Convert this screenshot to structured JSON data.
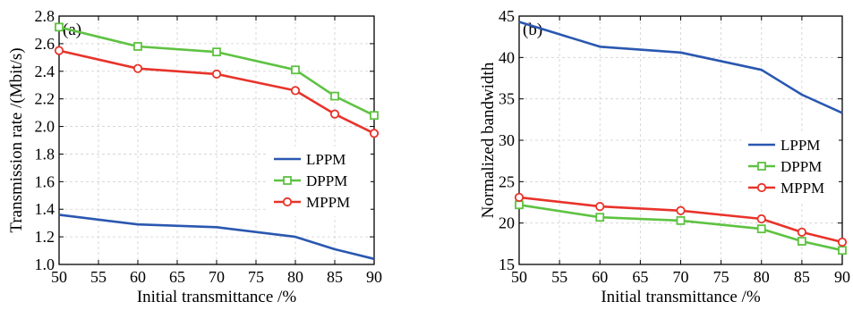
{
  "chart_data": [
    {
      "type": "line",
      "panel_label": "(a)",
      "xlabel": "Initial transmittance /%",
      "ylabel": "Transmission rate /(Mbit/s)",
      "xlim": [
        50,
        90
      ],
      "ylim": [
        1.0,
        2.8
      ],
      "xticks": [
        "50",
        "55",
        "60",
        "65",
        "70",
        "75",
        "80",
        "85",
        "90"
      ],
      "yticks": [
        "1.0",
        "1.2",
        "1.4",
        "1.6",
        "1.8",
        "2.0",
        "2.2",
        "2.4",
        "2.6",
        "2.8"
      ],
      "grid": "light dashed",
      "legend_position": "bottom-right",
      "series": [
        {
          "name": "LPPM",
          "color": "#2a57b0",
          "marker": "none",
          "x": [
            50,
            60,
            70,
            80,
            85,
            90
          ],
          "y": [
            1.36,
            1.29,
            1.27,
            1.2,
            1.11,
            1.04
          ]
        },
        {
          "name": "DPPM",
          "color": "#5ec242",
          "marker": "square",
          "x": [
            50,
            60,
            70,
            80,
            85,
            90
          ],
          "y": [
            2.72,
            2.58,
            2.54,
            2.41,
            2.22,
            2.08
          ]
        },
        {
          "name": "MPPM",
          "color": "#e8332a",
          "marker": "circle",
          "x": [
            50,
            60,
            70,
            80,
            85,
            90
          ],
          "y": [
            2.55,
            2.42,
            2.38,
            2.26,
            2.09,
            1.95
          ]
        }
      ]
    },
    {
      "type": "line",
      "panel_label": "(b)",
      "xlabel": "Initial transmittance /%",
      "ylabel": "Normalized bandwidth",
      "xlim": [
        50,
        90
      ],
      "ylim": [
        15,
        45
      ],
      "xticks": [
        "50",
        "55",
        "60",
        "65",
        "70",
        "75",
        "80",
        "85",
        "90"
      ],
      "yticks": [
        "15",
        "20",
        "25",
        "30",
        "35",
        "40",
        "45"
      ],
      "grid": "light dashed",
      "legend_position": "center-right",
      "series": [
        {
          "name": "LPPM",
          "color": "#2a57b0",
          "marker": "none",
          "x": [
            50,
            60,
            70,
            80,
            85,
            90
          ],
          "y": [
            44.3,
            41.3,
            40.6,
            38.5,
            35.5,
            33.3
          ]
        },
        {
          "name": "DPPM",
          "color": "#5ec242",
          "marker": "square",
          "x": [
            50,
            60,
            70,
            80,
            85,
            90
          ],
          "y": [
            22.2,
            20.7,
            20.3,
            19.3,
            17.8,
            16.7
          ]
        },
        {
          "name": "MPPM",
          "color": "#e8332a",
          "marker": "circle",
          "x": [
            50,
            60,
            70,
            80,
            85,
            90
          ],
          "y": [
            23.1,
            22.0,
            21.5,
            20.5,
            18.9,
            17.7
          ]
        }
      ]
    }
  ]
}
